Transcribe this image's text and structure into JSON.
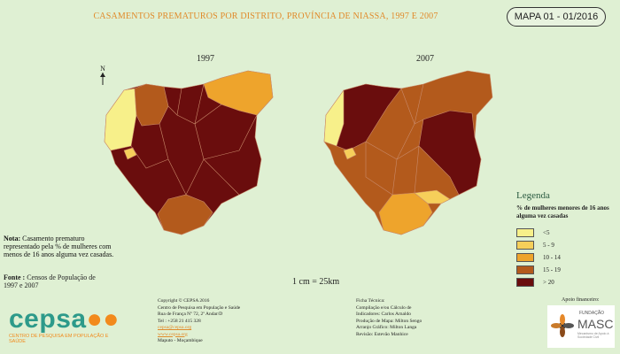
{
  "title": "CASAMENTOS PREMATUROS POR DISTRITO, PROVÍNCIA DE NIASSA, 1997 E 2007",
  "map_badge": "MAPA 01 - 01/2016",
  "maps": [
    {
      "year": "1997"
    },
    {
      "year": "2007"
    }
  ],
  "north_label": "N",
  "legend": {
    "heading": "Legenda",
    "description": "% de mulheres menores de 16 anos alguma vez casadas",
    "items": [
      {
        "label": "<5",
        "color": "#f7f08a"
      },
      {
        "label": "5 - 9",
        "color": "#f6cf5a"
      },
      {
        "label": "10 - 14",
        "color": "#eea42c"
      },
      {
        "label": "15 - 19",
        "color": "#b35a1c"
      },
      {
        "label": "> 20",
        "color": "#6a0d0d"
      }
    ]
  },
  "note_label": "Nota:",
  "note_text": "Casamento prematuro representado pela % de mulheres com menos de 16 anos alguma vez casadas.",
  "source_label": "Fonte :",
  "source_text": "Censos de População de 1997 e 2007",
  "scale_text": "1 cm = 25km",
  "copyright": {
    "line1": "Copyright © CEPSA 2016",
    "line2": "Centro de Pesquisa em População e Saúde",
    "line3": "Rua de França Nº 72, 2º Andar/D",
    "line4": "Tel : +258 21 415 328",
    "line5": "cepsa@cepsa.org",
    "line6": "www.cepsa.org",
    "line7": "Maputo - Moçambique"
  },
  "ficha": {
    "line1": "Ficha Técnica:",
    "line2": "Compilação e/ou Cálculo de",
    "line3": "Indicadores: Carlos Arnaldo",
    "line4": "Produção de Mapa: Milton Sengo",
    "line5": "Arranjo Gráfico: Milton Langa",
    "line6": "Revisão: Estevão Manhice"
  },
  "apoio": "Apoio financeiro:",
  "cepsa_logo": {
    "name": "cepsa",
    "tagline": "CENTRO DE PESQUISA EM POPULAÇÃO E SAÚDE"
  },
  "masc_logo": {
    "top": "FUNDAÇÃO",
    "name": "MASC",
    "sub": "Mecanismo de Apoio à Sociedade Civil"
  }
}
